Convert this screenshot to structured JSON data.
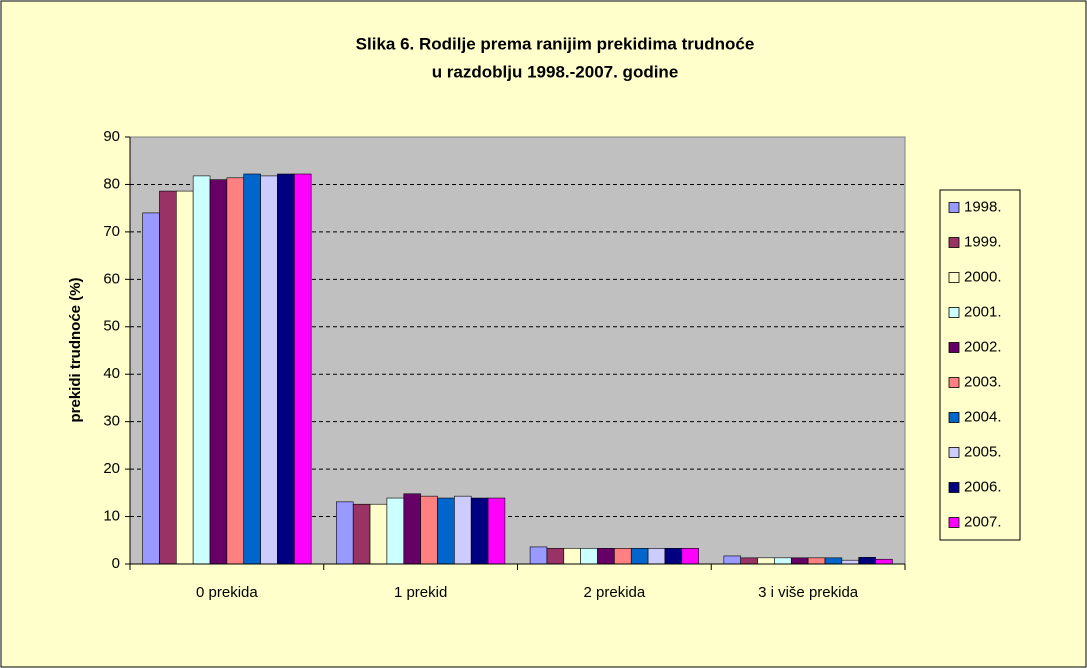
{
  "chart_data": {
    "type": "bar",
    "title": [
      "Slika 6. Rodilje prema ranijim prekidima trudnoće",
      "u razdoblju 1998.-2007. godine"
    ],
    "y_label": "prekidi trudnoće (%)",
    "categories": [
      "0 prekida",
      "1 prekid",
      "2 prekida",
      "3 i više prekida"
    ],
    "series": [
      {
        "name": "1998.",
        "color": "#9999FF",
        "values": [
          74,
          13.1,
          3.6,
          1.7
        ]
      },
      {
        "name": "1999.",
        "color": "#993366",
        "values": [
          78.6,
          12.6,
          3.3,
          1.3
        ]
      },
      {
        "name": "2000.",
        "color": "#FFFFCC",
        "values": [
          78.6,
          12.6,
          3.3,
          1.3
        ]
      },
      {
        "name": "2001.",
        "color": "#CCFFFF",
        "values": [
          81.8,
          13.9,
          3.3,
          1.3
        ]
      },
      {
        "name": "2002.",
        "color": "#660066",
        "values": [
          81,
          14.8,
          3.3,
          1.3
        ]
      },
      {
        "name": "2003.",
        "color": "#FF8080",
        "values": [
          81.4,
          14.3,
          3.3,
          1.3
        ]
      },
      {
        "name": "2004.",
        "color": "#0066CC",
        "values": [
          82.2,
          13.9,
          3.3,
          1.3
        ]
      },
      {
        "name": "2005.",
        "color": "#CCCCFF",
        "values": [
          81.8,
          14.3,
          3.3,
          0.8
        ]
      },
      {
        "name": "2006.",
        "color": "#000080",
        "values": [
          82.2,
          13.9,
          3.3,
          1.4
        ]
      },
      {
        "name": "2007.",
        "color": "#FF00FF",
        "values": [
          82.2,
          13.9,
          3.3,
          1.0
        ]
      }
    ],
    "ylim": [
      0,
      90
    ],
    "yticks": [
      0,
      10,
      20,
      30,
      40,
      50,
      60,
      70,
      80,
      90
    ],
    "grid": true,
    "legend": "right"
  }
}
